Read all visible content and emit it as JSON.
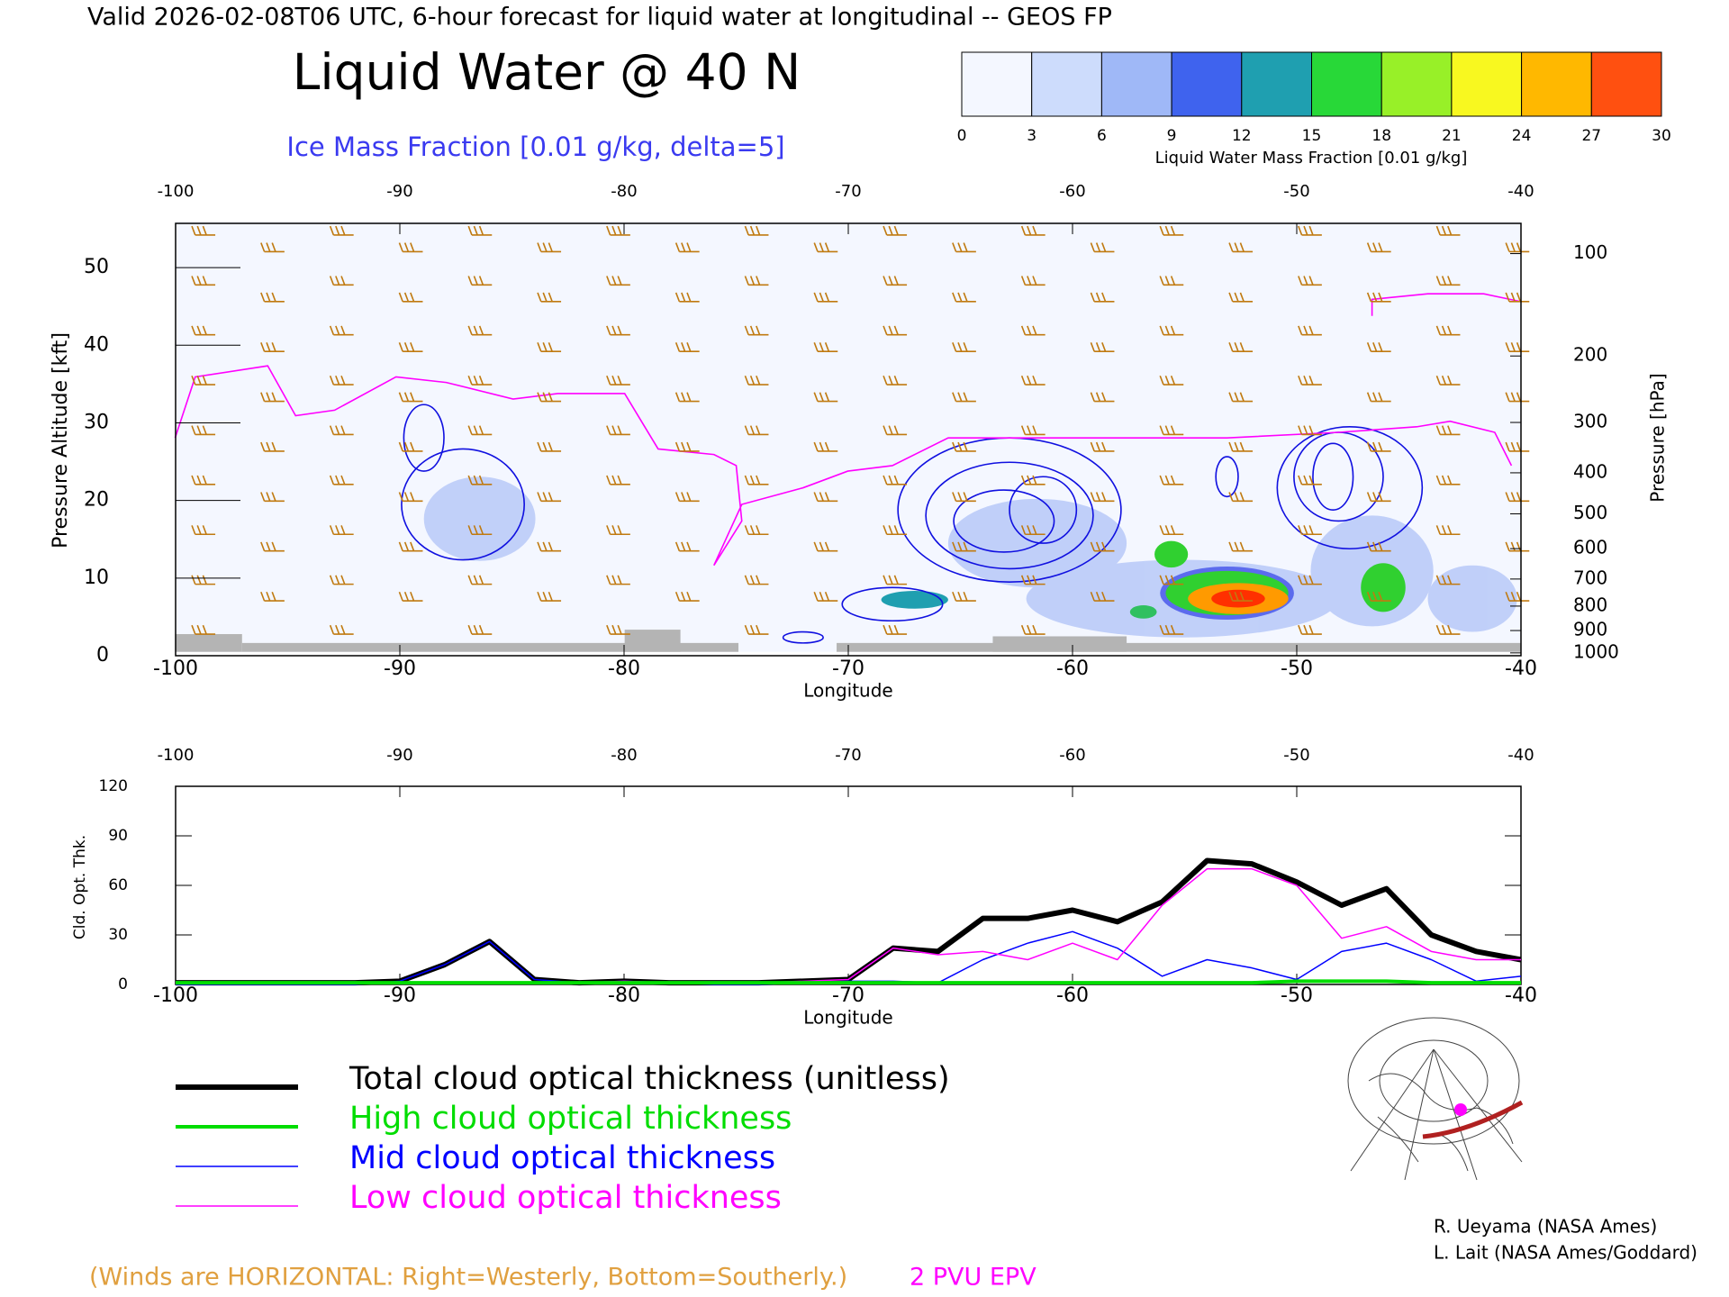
{
  "header": "Valid 2026-02-08T06 UTC, 6-hour forecast for liquid water at longitudinal -- GEOS FP",
  "notes": [
    "(Winds are HORIZONTAL: Right=Westerly, Bottom=Southerly.)",
    "2 PVU EPV"
  ],
  "credits": [
    "R. Ueyama (NASA Ames)",
    "L. Lait (NASA Ames/Goddard)"
  ],
  "chart_data": [
    {
      "type": "contour",
      "title": "Liquid Water @ 40 N",
      "subtitle": "Ice Mass Fraction [0.01 g/kg, delta=5]",
      "x_label": "Longitude",
      "y_label": "Pressure Altitude [kft]",
      "y2_label": "Pressure [hPa]",
      "xlim": [
        -100,
        -40
      ],
      "xticks": [
        -100,
        -90,
        -80,
        -70,
        -60,
        -50,
        -40
      ],
      "ylim": [
        0,
        55.7
      ],
      "yticks": [
        0,
        10,
        20,
        30,
        40,
        50
      ],
      "y2ticks": [
        100,
        200,
        300,
        400,
        500,
        600,
        700,
        800,
        900,
        1000
      ],
      "colorbar": {
        "label": "Liquid Water Mass Fraction [0.01 g/kg]",
        "ticks": [
          0,
          3,
          6,
          9,
          12,
          15,
          18,
          21,
          24,
          27,
          30
        ],
        "colors": [
          "#f4f7ff",
          "#cddcfc",
          "#9fb8f7",
          "#3f63ee",
          "#1f9fb0",
          "#28d838",
          "#98f028",
          "#f8f820",
          "#ffb800",
          "#ff5010"
        ]
      }
    },
    {
      "type": "line",
      "x_label": "Longitude",
      "y_label": "Cld. Opt. Thk.",
      "xlim": [
        -100,
        -40
      ],
      "xticks": [
        -100,
        -90,
        -80,
        -70,
        -60,
        -50,
        -40
      ],
      "ylim": [
        0,
        120
      ],
      "yticks": [
        0,
        30,
        60,
        90,
        120
      ],
      "x": [
        -100,
        -98,
        -96,
        -94,
        -92,
        -90,
        -88,
        -86,
        -84,
        -82,
        -80,
        -78,
        -76,
        -74,
        -72,
        -70,
        -68,
        -66,
        -64,
        -62,
        -60,
        -58,
        -56,
        -54,
        -52,
        -50,
        -48,
        -46,
        -44,
        -42,
        -40
      ],
      "series": [
        {
          "name": "Total cloud optical thickness (unitless)",
          "color": "#000000",
          "width": 6,
          "values": [
            1,
            1,
            1,
            1,
            1,
            2,
            12,
            26,
            3,
            1,
            2,
            1,
            1,
            1,
            2,
            3,
            22,
            20,
            40,
            40,
            45,
            38,
            50,
            75,
            73,
            62,
            48,
            58,
            30,
            20,
            15
          ]
        },
        {
          "name": "High cloud optical thickness",
          "color": "#00dd00",
          "width": 4,
          "values": [
            1,
            1,
            1,
            1,
            1,
            1,
            1,
            1,
            1,
            1,
            1,
            1,
            1,
            1,
            1,
            1,
            1,
            1,
            1,
            1,
            1,
            1,
            1,
            1,
            1,
            2,
            2,
            2,
            1,
            1,
            1
          ]
        },
        {
          "name": "Mid cloud optical thickness",
          "color": "#0000ff",
          "width": 1.5,
          "values": [
            0,
            0,
            0,
            0,
            0,
            2,
            12,
            26,
            3,
            1,
            2,
            1,
            0,
            0,
            1,
            2,
            2,
            1,
            15,
            25,
            32,
            22,
            5,
            15,
            10,
            3,
            20,
            25,
            15,
            2,
            5
          ]
        },
        {
          "name": "Low cloud optical thickness",
          "color": "#ff00ff",
          "width": 1.5,
          "values": [
            1,
            1,
            1,
            1,
            1,
            1,
            1,
            1,
            1,
            1,
            2,
            1,
            1,
            1,
            2,
            3,
            22,
            18,
            20,
            15,
            25,
            15,
            48,
            70,
            70,
            60,
            28,
            35,
            20,
            15,
            15
          ]
        }
      ]
    }
  ]
}
